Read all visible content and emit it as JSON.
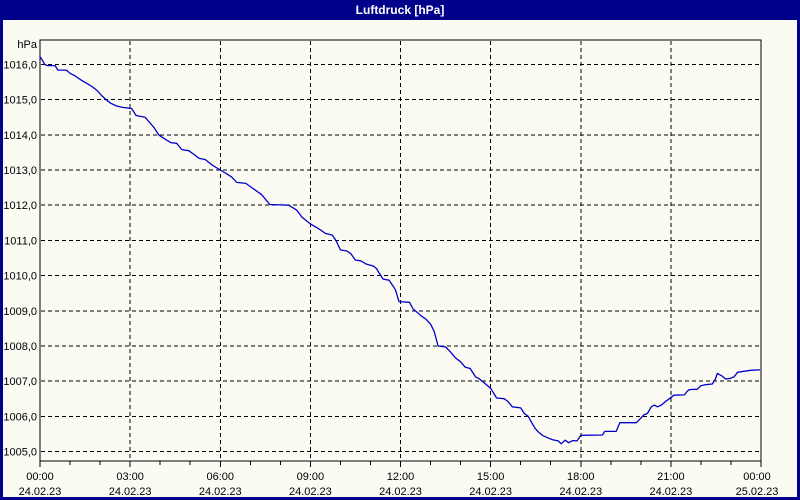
{
  "window": {
    "title": "Luftdruck [hPa]",
    "colors": {
      "title_bar": "#00008B",
      "border": "#00008B",
      "background": "#FBFBF3",
      "plot_line": "#0000CC",
      "grid": "#000000",
      "text": "#000000"
    }
  },
  "chart_data": {
    "type": "line",
    "title": "Luftdruck [hPa]",
    "ylabel": "hPa",
    "xlabel": "",
    "ylim": [
      1005,
      1016
    ],
    "x_range_hours": [
      0,
      24
    ],
    "grid": "dashed",
    "legend": "none",
    "y_ticks": [
      {
        "value": 1016,
        "label": "1016,0"
      },
      {
        "value": 1015,
        "label": "1015,0"
      },
      {
        "value": 1014,
        "label": "1014,0"
      },
      {
        "value": 1013,
        "label": "1013,0"
      },
      {
        "value": 1012,
        "label": "1012,0"
      },
      {
        "value": 1011,
        "label": "1011,0"
      },
      {
        "value": 1010,
        "label": "1010,0"
      },
      {
        "value": 1009,
        "label": "1009,0"
      },
      {
        "value": 1008,
        "label": "1008,0"
      },
      {
        "value": 1007,
        "label": "1007,0"
      },
      {
        "value": 1006,
        "label": "1006,0"
      },
      {
        "value": 1005,
        "label": "1005,0"
      }
    ],
    "x_ticks": [
      {
        "hour": 0,
        "time": "00:00",
        "date": "24.02.23"
      },
      {
        "hour": 3,
        "time": "03:00",
        "date": "24.02.23"
      },
      {
        "hour": 6,
        "time": "06:00",
        "date": "24.02.23"
      },
      {
        "hour": 9,
        "time": "09:00",
        "date": "24.02.23"
      },
      {
        "hour": 12,
        "time": "12:00",
        "date": "24.02.23"
      },
      {
        "hour": 15,
        "time": "15:00",
        "date": "24.02.23"
      },
      {
        "hour": 18,
        "time": "18:00",
        "date": "24.02.23"
      },
      {
        "hour": 21,
        "time": "21:00",
        "date": "24.02.23"
      },
      {
        "hour": 24,
        "time": "00:00",
        "date": "25.02.23"
      }
    ],
    "minor_x_tick_every_hours": 1,
    "series": [
      {
        "name": "Luftdruck",
        "unit": "hPa",
        "points": [
          [
            0,
            1016.22
          ],
          [
            0.08,
            1016.12
          ],
          [
            0.16,
            1016.0
          ],
          [
            0.25,
            1015.97
          ],
          [
            0.5,
            1015.97
          ],
          [
            0.6,
            1015.84
          ],
          [
            0.88,
            1015.84
          ],
          [
            1.0,
            1015.75
          ],
          [
            1.18,
            1015.67
          ],
          [
            1.38,
            1015.55
          ],
          [
            1.58,
            1015.45
          ],
          [
            1.75,
            1015.36
          ],
          [
            1.9,
            1015.26
          ],
          [
            2.05,
            1015.12
          ],
          [
            2.2,
            1015.0
          ],
          [
            2.35,
            1014.9
          ],
          [
            2.55,
            1014.82
          ],
          [
            2.75,
            1014.78
          ],
          [
            3.05,
            1014.75
          ],
          [
            3.2,
            1014.55
          ],
          [
            3.5,
            1014.5
          ],
          [
            3.65,
            1014.35
          ],
          [
            3.8,
            1014.2
          ],
          [
            3.95,
            1014.0
          ],
          [
            4.2,
            1013.86
          ],
          [
            4.35,
            1013.78
          ],
          [
            4.55,
            1013.76
          ],
          [
            4.72,
            1013.58
          ],
          [
            4.95,
            1013.55
          ],
          [
            5.1,
            1013.46
          ],
          [
            5.3,
            1013.33
          ],
          [
            5.5,
            1013.3
          ],
          [
            5.72,
            1013.15
          ],
          [
            6.0,
            1013.0
          ],
          [
            6.2,
            1012.9
          ],
          [
            6.38,
            1012.8
          ],
          [
            6.55,
            1012.65
          ],
          [
            6.85,
            1012.62
          ],
          [
            7.05,
            1012.5
          ],
          [
            7.38,
            1012.3
          ],
          [
            7.65,
            1012.02
          ],
          [
            8.28,
            1012.0
          ],
          [
            8.55,
            1011.86
          ],
          [
            8.72,
            1011.66
          ],
          [
            9.0,
            1011.47
          ],
          [
            9.3,
            1011.32
          ],
          [
            9.5,
            1011.2
          ],
          [
            9.73,
            1011.15
          ],
          [
            9.85,
            1011.0
          ],
          [
            10.0,
            1010.73
          ],
          [
            10.22,
            1010.7
          ],
          [
            10.35,
            1010.62
          ],
          [
            10.5,
            1010.44
          ],
          [
            10.68,
            1010.42
          ],
          [
            10.85,
            1010.33
          ],
          [
            11.1,
            1010.27
          ],
          [
            11.2,
            1010.2
          ],
          [
            11.3,
            1010.06
          ],
          [
            11.42,
            1009.9
          ],
          [
            11.62,
            1009.87
          ],
          [
            11.73,
            1009.73
          ],
          [
            11.83,
            1009.6
          ],
          [
            11.95,
            1009.26
          ],
          [
            12.3,
            1009.24
          ],
          [
            12.42,
            1009.05
          ],
          [
            12.55,
            1008.96
          ],
          [
            12.68,
            1008.86
          ],
          [
            12.85,
            1008.76
          ],
          [
            13.0,
            1008.62
          ],
          [
            13.12,
            1008.42
          ],
          [
            13.25,
            1008.0
          ],
          [
            13.5,
            1007.97
          ],
          [
            13.65,
            1007.84
          ],
          [
            13.82,
            1007.67
          ],
          [
            14.0,
            1007.55
          ],
          [
            14.15,
            1007.4
          ],
          [
            14.32,
            1007.36
          ],
          [
            14.5,
            1007.12
          ],
          [
            14.62,
            1007.07
          ],
          [
            14.8,
            1006.94
          ],
          [
            15.0,
            1006.8
          ],
          [
            15.2,
            1006.52
          ],
          [
            15.45,
            1006.5
          ],
          [
            15.58,
            1006.42
          ],
          [
            15.72,
            1006.27
          ],
          [
            16.0,
            1006.24
          ],
          [
            16.12,
            1006.08
          ],
          [
            16.25,
            1006.0
          ],
          [
            16.38,
            1005.8
          ],
          [
            16.48,
            1005.66
          ],
          [
            16.58,
            1005.56
          ],
          [
            16.72,
            1005.46
          ],
          [
            16.9,
            1005.39
          ],
          [
            17.08,
            1005.33
          ],
          [
            17.25,
            1005.3
          ],
          [
            17.35,
            1005.22
          ],
          [
            17.48,
            1005.32
          ],
          [
            17.6,
            1005.25
          ],
          [
            17.73,
            1005.31
          ],
          [
            17.88,
            1005.3
          ],
          [
            18.0,
            1005.46
          ],
          [
            18.72,
            1005.47
          ],
          [
            18.8,
            1005.57
          ],
          [
            19.18,
            1005.57
          ],
          [
            19.3,
            1005.82
          ],
          [
            19.85,
            1005.82
          ],
          [
            19.98,
            1005.93
          ],
          [
            20.1,
            1006.04
          ],
          [
            20.22,
            1006.08
          ],
          [
            20.35,
            1006.27
          ],
          [
            20.45,
            1006.32
          ],
          [
            20.55,
            1006.27
          ],
          [
            20.68,
            1006.32
          ],
          [
            20.82,
            1006.42
          ],
          [
            20.95,
            1006.5
          ],
          [
            21.1,
            1006.6
          ],
          [
            21.45,
            1006.61
          ],
          [
            21.55,
            1006.72
          ],
          [
            21.62,
            1006.76
          ],
          [
            21.88,
            1006.77
          ],
          [
            22.0,
            1006.87
          ],
          [
            22.15,
            1006.9
          ],
          [
            22.38,
            1006.92
          ],
          [
            22.48,
            1007.05
          ],
          [
            22.55,
            1007.22
          ],
          [
            22.7,
            1007.15
          ],
          [
            22.82,
            1007.06
          ],
          [
            22.98,
            1007.08
          ],
          [
            23.1,
            1007.12
          ],
          [
            23.22,
            1007.25
          ],
          [
            23.42,
            1007.28
          ],
          [
            23.7,
            1007.31
          ],
          [
            23.95,
            1007.32
          ]
        ]
      }
    ]
  }
}
